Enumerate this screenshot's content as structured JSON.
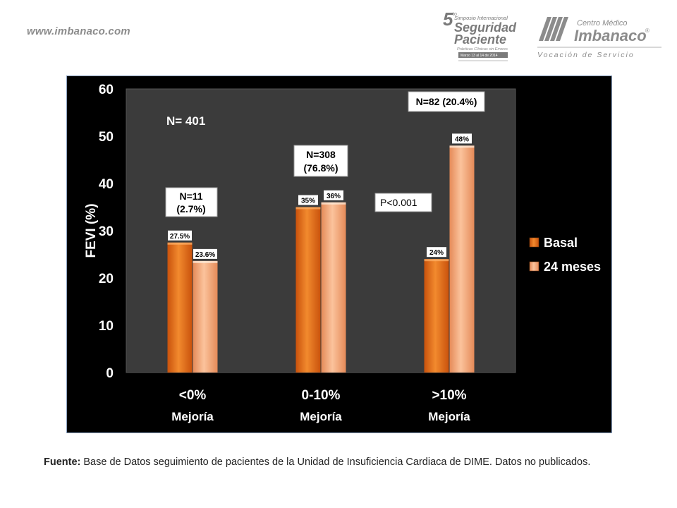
{
  "header": {
    "site_url": "www.imbanaco.com",
    "symposium_logo": {
      "number": "5",
      "super": "to",
      "line1": "Simposio Internacional",
      "line2": "Seguridad",
      "line3": "Paciente",
      "line4": "Prácticas Clínicas sin Errores",
      "dates": "Marzo 13 al 14 de 2014"
    },
    "imbanaco_logo": {
      "line1": "Centro Médico",
      "line2": "Imbanaco",
      "registered": "®",
      "tagline": "Vocación de Servicio"
    }
  },
  "chart_data": {
    "type": "bar",
    "ylabel": "FEVI (%)",
    "ylim": [
      0,
      60
    ],
    "yticks": [
      0,
      10,
      20,
      30,
      40,
      50,
      60
    ],
    "categories": [
      {
        "line1": "<0%",
        "line2": "Mejoría"
      },
      {
        "line1": "0-10%",
        "line2": "Mejoría"
      },
      {
        "line1": ">10%",
        "line2": "Mejoría"
      }
    ],
    "series": [
      {
        "name": "Basal",
        "values": [
          27.5,
          35,
          24
        ],
        "labels": [
          "27.5%",
          "35%",
          "24%"
        ],
        "color": "#e8721c"
      },
      {
        "name": "24 meses",
        "values": [
          23.6,
          36,
          48
        ],
        "labels": [
          "23.6%",
          "36%",
          "48%"
        ],
        "color": "#f5a87a"
      }
    ],
    "annotations": {
      "total": "N= 401",
      "group_counts": [
        {
          "line1": "N=11",
          "line2": "(2.7%)"
        },
        {
          "line1": "N=308",
          "line2": "(76.8%)"
        },
        {
          "line1": "N=82 (20.4%)",
          "line2": ""
        }
      ],
      "pvalue": "P<0.001"
    },
    "legend_position": "right",
    "grid": false
  },
  "footer": {
    "source_label": "Fuente:",
    "source_text": " Base de Datos seguimiento de pacientes de la Unidad de  Insuficiencia Cardiaca de DIME.  Datos no publicados."
  }
}
